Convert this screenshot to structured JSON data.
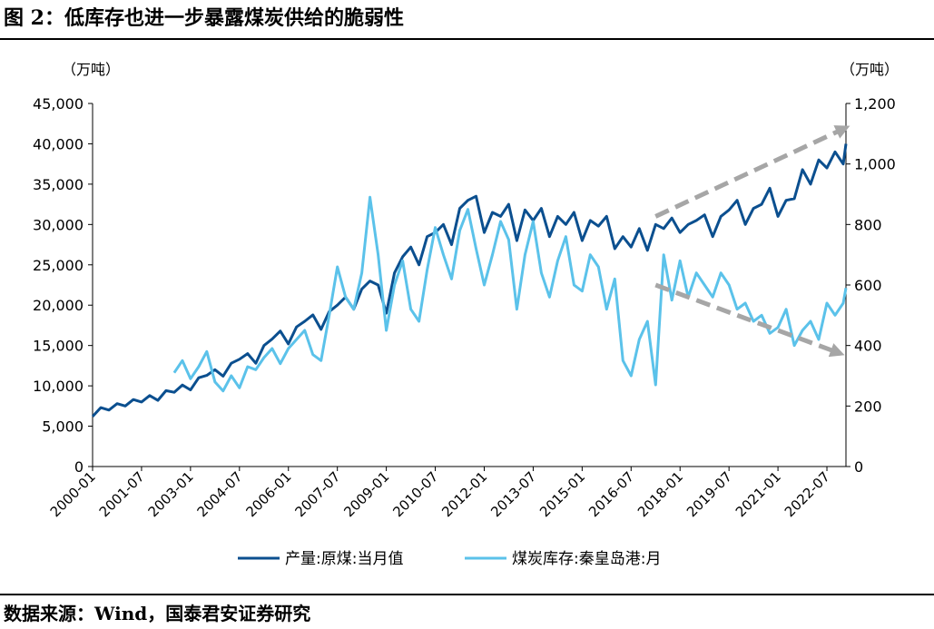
{
  "figure": {
    "title": "图 2：低库存也进一步暴露煤炭供给的脆弱性",
    "source": "数据来源：Wind，国泰君安证券研究"
  },
  "chart_data": {
    "type": "line",
    "left_unit": "（万吨）",
    "right_unit": "（万吨）",
    "x_ticks": [
      "2000-01",
      "2001-07",
      "2003-01",
      "2004-07",
      "2006-01",
      "2007-07",
      "2009-01",
      "2010-07",
      "2012-01",
      "2013-07",
      "2015-01",
      "2016-07",
      "2018-01",
      "2019-07",
      "2021-01",
      "2022-07"
    ],
    "x_range": [
      "2000-01",
      "2023-02"
    ],
    "y_left": {
      "ticks": [
        "0",
        "5,000",
        "10,000",
        "15,000",
        "20,000",
        "25,000",
        "30,000",
        "35,000",
        "40,000",
        "45,000"
      ],
      "lim": [
        0,
        45000
      ]
    },
    "y_right": {
      "ticks": [
        "0",
        "200",
        "400",
        "600",
        "800",
        "1,000",
        "1,200"
      ],
      "lim": [
        0,
        1200
      ]
    },
    "grid": false,
    "legend_position": "bottom",
    "series": [
      {
        "name": "产量:原煤:当月值",
        "axis": "left",
        "color": "#0b4f8f",
        "points": [
          [
            "2000-01",
            6200
          ],
          [
            "2000-04",
            7300
          ],
          [
            "2000-07",
            7000
          ],
          [
            "2000-10",
            7800
          ],
          [
            "2001-01",
            7500
          ],
          [
            "2001-04",
            8300
          ],
          [
            "2001-07",
            8000
          ],
          [
            "2001-10",
            8800
          ],
          [
            "2002-01",
            8200
          ],
          [
            "2002-04",
            9400
          ],
          [
            "2002-07",
            9200
          ],
          [
            "2002-10",
            10100
          ],
          [
            "2003-01",
            9500
          ],
          [
            "2003-04",
            11000
          ],
          [
            "2003-07",
            11300
          ],
          [
            "2003-10",
            12000
          ],
          [
            "2004-01",
            11200
          ],
          [
            "2004-04",
            12800
          ],
          [
            "2004-07",
            13300
          ],
          [
            "2004-10",
            14000
          ],
          [
            "2005-01",
            12800
          ],
          [
            "2005-04",
            15000
          ],
          [
            "2005-07",
            15800
          ],
          [
            "2005-10",
            16800
          ],
          [
            "2006-01",
            15200
          ],
          [
            "2006-04",
            17300
          ],
          [
            "2006-07",
            18000
          ],
          [
            "2006-10",
            18800
          ],
          [
            "2007-01",
            17000
          ],
          [
            "2007-04",
            19200
          ],
          [
            "2007-07",
            20000
          ],
          [
            "2007-10",
            21000
          ],
          [
            "2008-01",
            19500
          ],
          [
            "2008-04",
            22000
          ],
          [
            "2008-07",
            23000
          ],
          [
            "2008-10",
            22500
          ],
          [
            "2009-01",
            19000
          ],
          [
            "2009-04",
            24000
          ],
          [
            "2009-07",
            26000
          ],
          [
            "2009-10",
            27200
          ],
          [
            "2010-01",
            25000
          ],
          [
            "2010-04",
            28500
          ],
          [
            "2010-07",
            29000
          ],
          [
            "2010-10",
            30000
          ],
          [
            "2011-01",
            27500
          ],
          [
            "2011-04",
            32000
          ],
          [
            "2011-07",
            33000
          ],
          [
            "2011-10",
            33500
          ],
          [
            "2012-01",
            29000
          ],
          [
            "2012-04",
            31500
          ],
          [
            "2012-07",
            31000
          ],
          [
            "2012-10",
            32500
          ],
          [
            "2013-01",
            28000
          ],
          [
            "2013-04",
            31800
          ],
          [
            "2013-07",
            30500
          ],
          [
            "2013-10",
            32000
          ],
          [
            "2014-01",
            28500
          ],
          [
            "2014-04",
            31000
          ],
          [
            "2014-07",
            30000
          ],
          [
            "2014-10",
            31500
          ],
          [
            "2015-01",
            28000
          ],
          [
            "2015-04",
            30500
          ],
          [
            "2015-07",
            29800
          ],
          [
            "2015-10",
            31000
          ],
          [
            "2016-01",
            27000
          ],
          [
            "2016-04",
            28500
          ],
          [
            "2016-07",
            27200
          ],
          [
            "2016-10",
            29500
          ],
          [
            "2017-01",
            26800
          ],
          [
            "2017-04",
            30000
          ],
          [
            "2017-07",
            29500
          ],
          [
            "2017-10",
            30800
          ],
          [
            "2018-01",
            29000
          ],
          [
            "2018-04",
            30000
          ],
          [
            "2018-07",
            30500
          ],
          [
            "2018-10",
            31200
          ],
          [
            "2019-01",
            28500
          ],
          [
            "2019-04",
            31000
          ],
          [
            "2019-07",
            31800
          ],
          [
            "2019-10",
            33000
          ],
          [
            "2020-01",
            30000
          ],
          [
            "2020-04",
            32000
          ],
          [
            "2020-07",
            32500
          ],
          [
            "2020-10",
            34500
          ],
          [
            "2021-01",
            31000
          ],
          [
            "2021-04",
            33000
          ],
          [
            "2021-07",
            33200
          ],
          [
            "2021-10",
            36800
          ],
          [
            "2022-01",
            35000
          ],
          [
            "2022-04",
            38000
          ],
          [
            "2022-07",
            37000
          ],
          [
            "2022-10",
            39000
          ],
          [
            "2023-01",
            37500
          ],
          [
            "2023-02",
            40000
          ]
        ]
      },
      {
        "name": "煤炭库存:秦皇岛港:月",
        "axis": "right",
        "color": "#5bc2ea",
        "points": [
          [
            "2002-07",
            310
          ],
          [
            "2002-10",
            350
          ],
          [
            "2003-01",
            290
          ],
          [
            "2003-04",
            330
          ],
          [
            "2003-07",
            380
          ],
          [
            "2003-10",
            280
          ],
          [
            "2004-01",
            250
          ],
          [
            "2004-04",
            300
          ],
          [
            "2004-07",
            260
          ],
          [
            "2004-10",
            330
          ],
          [
            "2005-01",
            320
          ],
          [
            "2005-04",
            360
          ],
          [
            "2005-07",
            390
          ],
          [
            "2005-10",
            340
          ],
          [
            "2006-01",
            390
          ],
          [
            "2006-04",
            420
          ],
          [
            "2006-07",
            450
          ],
          [
            "2006-10",
            370
          ],
          [
            "2007-01",
            350
          ],
          [
            "2007-04",
            500
          ],
          [
            "2007-07",
            660
          ],
          [
            "2007-10",
            560
          ],
          [
            "2008-01",
            520
          ],
          [
            "2008-04",
            640
          ],
          [
            "2008-07",
            890
          ],
          [
            "2008-10",
            700
          ],
          [
            "2009-01",
            450
          ],
          [
            "2009-04",
            600
          ],
          [
            "2009-07",
            680
          ],
          [
            "2009-10",
            520
          ],
          [
            "2010-01",
            480
          ],
          [
            "2010-04",
            650
          ],
          [
            "2010-07",
            790
          ],
          [
            "2010-10",
            700
          ],
          [
            "2011-01",
            620
          ],
          [
            "2011-04",
            780
          ],
          [
            "2011-07",
            850
          ],
          [
            "2011-10",
            720
          ],
          [
            "2012-01",
            600
          ],
          [
            "2012-04",
            700
          ],
          [
            "2012-07",
            810
          ],
          [
            "2012-10",
            750
          ],
          [
            "2013-01",
            520
          ],
          [
            "2013-04",
            700
          ],
          [
            "2013-07",
            810
          ],
          [
            "2013-10",
            640
          ],
          [
            "2014-01",
            560
          ],
          [
            "2014-04",
            680
          ],
          [
            "2014-07",
            760
          ],
          [
            "2014-10",
            600
          ],
          [
            "2015-01",
            580
          ],
          [
            "2015-04",
            700
          ],
          [
            "2015-07",
            660
          ],
          [
            "2015-10",
            520
          ],
          [
            "2016-01",
            620
          ],
          [
            "2016-04",
            350
          ],
          [
            "2016-07",
            300
          ],
          [
            "2016-10",
            420
          ],
          [
            "2017-01",
            480
          ],
          [
            "2017-04",
            270
          ],
          [
            "2017-07",
            700
          ],
          [
            "2017-10",
            550
          ],
          [
            "2018-01",
            680
          ],
          [
            "2018-04",
            560
          ],
          [
            "2018-07",
            640
          ],
          [
            "2018-10",
            600
          ],
          [
            "2019-01",
            560
          ],
          [
            "2019-04",
            640
          ],
          [
            "2019-07",
            600
          ],
          [
            "2019-10",
            520
          ],
          [
            "2020-01",
            540
          ],
          [
            "2020-04",
            480
          ],
          [
            "2020-07",
            500
          ],
          [
            "2020-10",
            440
          ],
          [
            "2021-01",
            460
          ],
          [
            "2021-04",
            520
          ],
          [
            "2021-07",
            400
          ],
          [
            "2021-10",
            450
          ],
          [
            "2022-01",
            480
          ],
          [
            "2022-04",
            420
          ],
          [
            "2022-07",
            540
          ],
          [
            "2022-10",
            500
          ],
          [
            "2023-01",
            540
          ],
          [
            "2023-02",
            590
          ]
        ]
      }
    ],
    "annotations": [
      {
        "type": "trend-arrow",
        "axis": "left",
        "from": [
          "2017-04",
          31000
        ],
        "to": [
          "2023-02",
          42000
        ],
        "color": "#a6a6a6"
      },
      {
        "type": "trend-arrow",
        "axis": "left",
        "from": [
          "2017-04",
          22500
        ],
        "to": [
          "2022-12",
          14000
        ],
        "color": "#a6a6a6"
      }
    ]
  }
}
